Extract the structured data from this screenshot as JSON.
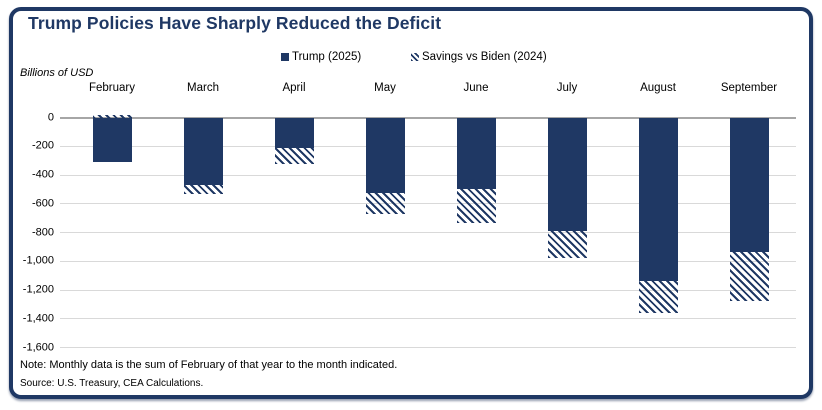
{
  "page": {
    "title": "Trump Policies Have Sharply Reduced the Deficit"
  },
  "units_label": "Billions of USD",
  "legend": {
    "items": [
      {
        "label": "Trump (2025)",
        "swatch": "solid"
      },
      {
        "label": "Savings vs Biden (2024)",
        "swatch": "hatched"
      }
    ]
  },
  "footnotes": {
    "note": "Note: Monthly data is the sum of February of that year to the month indicated.",
    "source": "Source: U.S. Treasury, CEA Calculations."
  },
  "colors": {
    "navy": "#1f3864",
    "zero_line": "#a6a6a6",
    "gridline": "#d9d9d9",
    "background": "#ffffff"
  },
  "chart_data": {
    "type": "bar",
    "subtype": "stacked",
    "title": "Trump Policies Have Sharply Reduced the Deficit",
    "ylabel": "Billions of USD",
    "xlabel": "",
    "categories": [
      "February",
      "March",
      "April",
      "May",
      "June",
      "July",
      "August",
      "September"
    ],
    "series": [
      {
        "name": "Trump (2025)",
        "style": "solid",
        "values": [
          -307,
          -468,
          -210,
          -526,
          -499,
          -790,
          -1135,
          -937
        ]
      },
      {
        "name": "Savings vs Biden (2024)",
        "style": "hatched",
        "values": [
          11,
          -64,
          -112,
          -144,
          -236,
          -190,
          -225,
          -343
        ]
      }
    ],
    "stacked_totals_biden_2024": [
      -296,
      -532,
      -322,
      -670,
      -735,
      -980,
      -1360,
      -1280
    ],
    "ylim": [
      -1600,
      0
    ],
    "yticks": [
      0,
      -200,
      -400,
      -600,
      -800,
      -1000,
      -1200,
      -1400,
      -1600
    ],
    "ytick_labels": [
      "0",
      "-200",
      "-400",
      "-600",
      "-800",
      "-1,000",
      "-1,200",
      "-1,400",
      "-1,600"
    ],
    "grid": true,
    "legend_position": "top",
    "month_labels_position": "top"
  }
}
